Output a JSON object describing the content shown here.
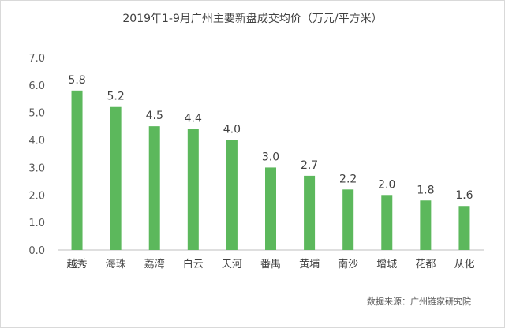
{
  "chart_data": {
    "type": "bar",
    "title": "2019年1-9月广州主要新盘成交均价（万元/平方米）",
    "categories": [
      "越秀",
      "海珠",
      "荔湾",
      "白云",
      "天河",
      "番禺",
      "黄埔",
      "南沙",
      "增城",
      "花都",
      "从化"
    ],
    "values": [
      5.8,
      5.2,
      4.5,
      4.4,
      4.0,
      3.0,
      2.7,
      2.2,
      2.0,
      1.8,
      1.6
    ],
    "value_labels": [
      "5.8",
      "5.2",
      "4.5",
      "4.4",
      "4.0",
      "3.0",
      "2.7",
      "2.2",
      "2.0",
      "1.8",
      "1.6"
    ],
    "xlabel": "",
    "ylabel": "",
    "ylim": [
      0,
      7
    ],
    "yticks": [
      "0.0",
      "1.0",
      "2.0",
      "3.0",
      "4.0",
      "5.0",
      "6.0",
      "7.0"
    ],
    "grid": false,
    "legend": "none",
    "bar_color": "#5cb85c",
    "source": "数据来源：广州链家研究院"
  }
}
